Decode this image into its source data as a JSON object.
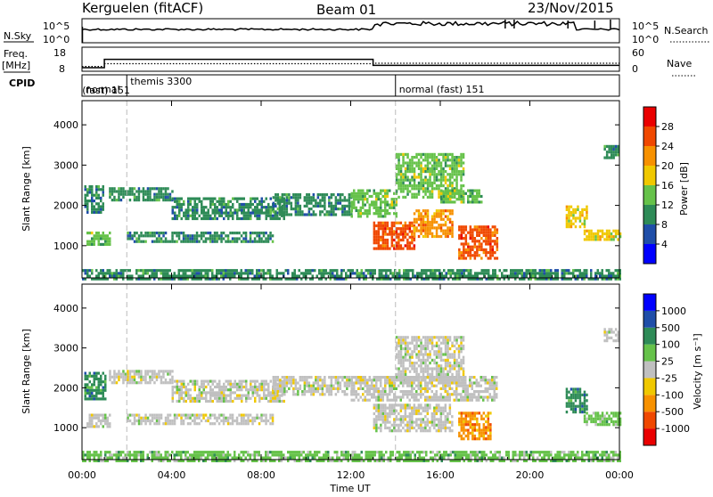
{
  "header": {
    "station": "Kerguelen (fitACF)",
    "beam": "Beam 01",
    "date": "23/Nov/2015"
  },
  "strips": {
    "noise": {
      "left_label": "N.Sky",
      "left_ticks": [
        "10^5",
        "10^0"
      ],
      "right_ticks": [
        "10^5",
        "10^0"
      ],
      "right_label": "N.Search"
    },
    "freq": {
      "left_label_1": "Freq.",
      "left_label_2": "[MHz]",
      "left_ticks": [
        "18",
        "8"
      ],
      "right_ticks": [
        "60",
        "0"
      ],
      "right_label": "Nave",
      "freq_steps": [
        [
          0.0,
          8.5
        ],
        [
          1.0,
          13.2
        ],
        [
          13.0,
          9.8
        ],
        [
          24.0,
          9.8
        ]
      ],
      "nave_steps": [
        [
          0.0,
          12
        ],
        [
          1.0,
          19
        ],
        [
          13.0,
          20
        ],
        [
          24.0,
          20
        ]
      ]
    },
    "cpid": {
      "label": "CPID",
      "segments": [
        {
          "start": 0.0,
          "end": 2.0,
          "line1": "normal",
          "line2": ""
        },
        {
          "start": 2.0,
          "end": 14.0,
          "line1": "themis 3300",
          "line2": "(fast) 151"
        },
        {
          "start": 14.0,
          "end": 24.0,
          "line1": "normal (fast) 151",
          "line2": ""
        }
      ]
    }
  },
  "x_axis": {
    "label": "Time UT",
    "ticks": [
      "00:00",
      "04:00",
      "08:00",
      "12:00",
      "16:00",
      "20:00",
      "00:00"
    ]
  },
  "colors": {
    "power": [
      "#0000ff",
      "#1f4ea8",
      "#2e8b57",
      "#66c24a",
      "#f0c800",
      "#f79100",
      "#f04800",
      "#ea0000"
    ],
    "velocity": [
      "#ea0000",
      "#f04800",
      "#f79100",
      "#f0c800",
      "#c0c0c0",
      "#66c24a",
      "#2e8b57",
      "#1f4ea8",
      "#0000ff"
    ]
  },
  "chart_data": [
    {
      "type": "heatmap",
      "ylabel": "Slant Range [km]",
      "xlabel": "",
      "xlim_hours": [
        0,
        24
      ],
      "ylim": [
        200,
        4600
      ],
      "y_ticks": [
        1000,
        2000,
        3000,
        4000
      ],
      "colorbar": {
        "label": "Power [dB]",
        "ticks": [
          "4",
          "8",
          "12",
          "16",
          "20",
          "24",
          "28"
        ],
        "range": [
          0,
          30
        ]
      },
      "regions": [
        {
          "t0": 0.1,
          "t1": 0.9,
          "r0": 1800,
          "r1": 2500,
          "value": 10
        },
        {
          "t0": 0.2,
          "t1": 1.2,
          "r0": 1050,
          "r1": 1350,
          "value": 12
        },
        {
          "t0": 1.2,
          "t1": 4.0,
          "r0": 2150,
          "r1": 2450,
          "value": 8
        },
        {
          "t0": 2.0,
          "t1": 8.5,
          "r0": 1100,
          "r1": 1350,
          "value": 9
        },
        {
          "t0": 4.0,
          "t1": 9.0,
          "r0": 1650,
          "r1": 2200,
          "value": 9
        },
        {
          "t0": 8.5,
          "t1": 12.0,
          "r0": 1800,
          "r1": 2300,
          "value": 10
        },
        {
          "t0": 12.0,
          "t1": 14.0,
          "r0": 1700,
          "r1": 2400,
          "value": 12
        },
        {
          "t0": 13.0,
          "t1": 14.8,
          "r0": 900,
          "r1": 1600,
          "value": 26
        },
        {
          "t0": 14.8,
          "t1": 16.5,
          "r0": 1200,
          "r1": 1900,
          "value": 20
        },
        {
          "t0": 14.0,
          "t1": 17.0,
          "r0": 2200,
          "r1": 3300,
          "value": 13
        },
        {
          "t0": 16.0,
          "t1": 17.8,
          "r0": 2050,
          "r1": 2400,
          "value": 14
        },
        {
          "t0": 16.8,
          "t1": 18.5,
          "r0": 700,
          "r1": 1500,
          "value": 27
        },
        {
          "t0": 21.6,
          "t1": 22.5,
          "r0": 1500,
          "r1": 2000,
          "value": 18
        },
        {
          "t0": 22.4,
          "t1": 24.0,
          "r0": 1150,
          "r1": 1400,
          "value": 19
        },
        {
          "t0": 23.3,
          "t1": 23.9,
          "r0": 3200,
          "r1": 3500,
          "value": 8
        },
        {
          "t0": 0.0,
          "t1": 24.0,
          "r0": 200,
          "r1": 420,
          "value": 10
        }
      ]
    },
    {
      "type": "heatmap",
      "ylabel": "Slant Range [km]",
      "xlabel": "Time UT",
      "xlim_hours": [
        0,
        24
      ],
      "ylim": [
        200,
        4600
      ],
      "y_ticks": [
        1000,
        2000,
        3000,
        4000
      ],
      "colorbar": {
        "label": "Velocity [m s⁻¹]",
        "ticks": [
          "-1000",
          "-500",
          "-100",
          "-25",
          "25",
          "100",
          "500",
          "1000"
        ],
        "range": [
          -1000,
          1000
        ]
      },
      "regions": [
        {
          "t0": 0.1,
          "t1": 1.0,
          "r0": 1700,
          "r1": 2400,
          "value": 500
        },
        {
          "t0": 0.2,
          "t1": 1.2,
          "r0": 1050,
          "r1": 1350,
          "value": 0
        },
        {
          "t0": 1.2,
          "t1": 4.0,
          "r0": 2150,
          "r1": 2450,
          "value": 0
        },
        {
          "t0": 2.0,
          "t1": 8.5,
          "r0": 1100,
          "r1": 1350,
          "value": 0
        },
        {
          "t0": 4.0,
          "t1": 9.0,
          "r0": 1650,
          "r1": 2200,
          "value": 0
        },
        {
          "t0": 8.5,
          "t1": 12.0,
          "r0": 1800,
          "r1": 2300,
          "value": 0
        },
        {
          "t0": 12.0,
          "t1": 18.5,
          "r0": 1700,
          "r1": 2300,
          "value": 0
        },
        {
          "t0": 13.0,
          "t1": 16.5,
          "r0": 900,
          "r1": 1600,
          "value": 0
        },
        {
          "t0": 14.0,
          "t1": 17.0,
          "r0": 2200,
          "r1": 3300,
          "value": 0
        },
        {
          "t0": 16.8,
          "t1": 18.2,
          "r0": 750,
          "r1": 1400,
          "value": -200
        },
        {
          "t0": 21.6,
          "t1": 22.5,
          "r0": 1400,
          "r1": 2000,
          "value": 500
        },
        {
          "t0": 22.4,
          "t1": 24.0,
          "r0": 1100,
          "r1": 1400,
          "value": 100
        },
        {
          "t0": 23.3,
          "t1": 23.9,
          "r0": 3200,
          "r1": 3500,
          "value": 0
        },
        {
          "t0": 0.0,
          "t1": 24.0,
          "r0": 200,
          "r1": 420,
          "value": 100
        }
      ]
    }
  ]
}
